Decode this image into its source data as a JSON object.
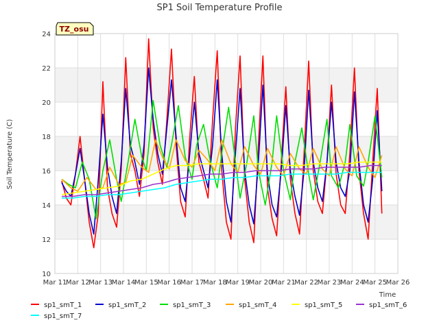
{
  "chart_data": {
    "type": "line",
    "title": "SP1 Soil Temperature Profile",
    "xlabel": "Time",
    "ylabel": "Soil Temperature (C)",
    "ylim": [
      10,
      24
    ],
    "xlim": [
      11,
      26
    ],
    "yticks": [
      10,
      12,
      14,
      16,
      18,
      20,
      22,
      24
    ],
    "xticks": [
      {
        "v": 11,
        "label": "Mar 11"
      },
      {
        "v": 12,
        "label": "Mar 12"
      },
      {
        "v": 13,
        "label": "Mar 13"
      },
      {
        "v": 14,
        "label": "Mar 14"
      },
      {
        "v": 15,
        "label": "Mar 15"
      },
      {
        "v": 16,
        "label": "Mar 16"
      },
      {
        "v": 17,
        "label": "Mar 17"
      },
      {
        "v": 18,
        "label": "Mar 18"
      },
      {
        "v": 19,
        "label": "Mar 19"
      },
      {
        "v": 20,
        "label": "Mar 20"
      },
      {
        "v": 21,
        "label": "Mar 21"
      },
      {
        "v": 22,
        "label": "Mar 22"
      },
      {
        "v": 23,
        "label": "Mar 23"
      },
      {
        "v": 24,
        "label": "Mar 24"
      },
      {
        "v": 25,
        "label": "Mar 25"
      },
      {
        "v": 26,
        "label": "Mar 26"
      }
    ],
    "badge": "TZ_osu",
    "grid": true,
    "legend_position": "bottom",
    "series": [
      {
        "name": "sp1_smT_1",
        "color": "#ff0000",
        "x": [
          11.3,
          11.5,
          11.7,
          11.9,
          12.1,
          12.3,
          12.5,
          12.7,
          12.9,
          13.1,
          13.3,
          13.5,
          13.7,
          13.9,
          14.1,
          14.3,
          14.5,
          14.7,
          14.9,
          15.1,
          15.3,
          15.5,
          15.7,
          15.9,
          16.1,
          16.3,
          16.5,
          16.7,
          16.9,
          17.1,
          17.3,
          17.5,
          17.7,
          17.9,
          18.1,
          18.3,
          18.5,
          18.7,
          18.9,
          19.1,
          19.3,
          19.5,
          19.7,
          19.9,
          20.1,
          20.3,
          20.5,
          20.7,
          20.9,
          21.1,
          21.3,
          21.5,
          21.7,
          21.9,
          22.1,
          22.3,
          22.5,
          22.7,
          22.9,
          23.1,
          23.3,
          23.5,
          23.7,
          23.9,
          24.1,
          24.3,
          24.5,
          24.7,
          24.9,
          25.1,
          25.3
        ],
        "y": [
          15.4,
          14.4,
          14.0,
          15.8,
          18.0,
          15.5,
          13.0,
          11.5,
          13.5,
          21.2,
          15.0,
          13.5,
          12.7,
          16.0,
          22.6,
          17.0,
          16.0,
          14.5,
          17.0,
          23.7,
          18.5,
          16.5,
          15.2,
          19.0,
          23.1,
          17.5,
          14.2,
          13.3,
          18.0,
          21.5,
          16.5,
          15.5,
          14.4,
          19.0,
          23.0,
          16.0,
          13.0,
          12.0,
          18.5,
          22.7,
          15.5,
          13.0,
          11.8,
          17.5,
          22.7,
          15.0,
          13.2,
          12.2,
          16.5,
          20.9,
          15.5,
          13.5,
          12.3,
          17.0,
          22.4,
          16.0,
          14.2,
          13.5,
          16.5,
          21.0,
          15.8,
          14.0,
          13.5,
          17.0,
          22.0,
          16.0,
          13.5,
          12.0,
          16.5,
          20.8,
          13.5
        ]
      },
      {
        "name": "sp1_smT_2",
        "color": "#0000cc",
        "x": [
          11.3,
          11.5,
          11.7,
          11.9,
          12.1,
          12.3,
          12.5,
          12.7,
          12.9,
          13.1,
          13.3,
          13.5,
          13.7,
          13.9,
          14.1,
          14.3,
          14.5,
          14.7,
          14.9,
          15.1,
          15.3,
          15.5,
          15.7,
          15.9,
          16.1,
          16.3,
          16.5,
          16.7,
          16.9,
          17.1,
          17.3,
          17.5,
          17.7,
          17.9,
          18.1,
          18.3,
          18.5,
          18.7,
          18.9,
          19.1,
          19.3,
          19.5,
          19.7,
          19.9,
          20.1,
          20.3,
          20.5,
          20.7,
          20.9,
          21.1,
          21.3,
          21.5,
          21.7,
          21.9,
          22.1,
          22.3,
          22.5,
          22.7,
          22.9,
          23.1,
          23.3,
          23.5,
          23.7,
          23.9,
          24.1,
          24.3,
          24.5,
          24.7,
          24.9,
          25.1,
          25.3
        ],
        "y": [
          15.3,
          14.8,
          14.5,
          15.8,
          17.3,
          15.5,
          13.5,
          12.3,
          15.5,
          19.3,
          16.2,
          14.5,
          13.5,
          16.5,
          20.8,
          17.5,
          16.5,
          15.2,
          17.5,
          22.0,
          19.0,
          17.0,
          15.8,
          18.5,
          21.3,
          18.0,
          15.0,
          14.2,
          17.0,
          20.0,
          17.0,
          16.0,
          15.0,
          17.5,
          21.3,
          17.0,
          14.2,
          13.0,
          17.0,
          20.8,
          16.0,
          14.0,
          12.9,
          16.5,
          21.0,
          15.8,
          14.0,
          13.3,
          16.0,
          19.8,
          16.0,
          14.5,
          13.4,
          16.0,
          20.7,
          16.5,
          15.0,
          14.2,
          16.5,
          20.0,
          16.5,
          15.0,
          14.5,
          16.0,
          20.6,
          16.5,
          14.0,
          13.0,
          15.5,
          19.5,
          14.8
        ]
      },
      {
        "name": "sp1_smT_3",
        "color": "#00dd00",
        "x": [
          11.3,
          11.6,
          11.9,
          12.2,
          12.5,
          12.8,
          13.1,
          13.4,
          13.7,
          13.9,
          14.2,
          14.5,
          14.8,
          15.0,
          15.3,
          15.6,
          15.9,
          16.1,
          16.4,
          16.7,
          17.0,
          17.2,
          17.5,
          17.8,
          18.1,
          18.3,
          18.6,
          18.9,
          19.1,
          19.4,
          19.7,
          19.9,
          20.2,
          20.5,
          20.7,
          21.0,
          21.3,
          21.5,
          21.8,
          22.1,
          22.3,
          22.6,
          22.9,
          23.1,
          23.4,
          23.7,
          23.9,
          24.2,
          24.5,
          24.7,
          25.0,
          25.3
        ],
        "y": [
          15.5,
          15.2,
          15.0,
          16.5,
          15.5,
          13.2,
          16.0,
          17.8,
          15.5,
          14.2,
          16.5,
          19.0,
          16.8,
          16.0,
          20.1,
          17.5,
          16.2,
          17.5,
          19.8,
          16.8,
          15.5,
          17.5,
          18.7,
          16.5,
          15.0,
          17.0,
          19.7,
          16.5,
          14.4,
          16.5,
          19.2,
          16.0,
          14.0,
          16.5,
          19.2,
          16.0,
          14.3,
          16.5,
          18.5,
          15.8,
          14.3,
          16.5,
          19.0,
          15.7,
          15.0,
          16.5,
          18.7,
          15.7,
          15.1,
          16.5,
          19.2,
          15.6
        ]
      },
      {
        "name": "sp1_smT_4",
        "color": "#ffa500",
        "x": [
          11.3,
          11.7,
          12.0,
          12.4,
          12.8,
          13.1,
          13.4,
          13.8,
          14.1,
          14.4,
          14.8,
          15.1,
          15.4,
          15.7,
          16.0,
          16.3,
          16.7,
          17.0,
          17.3,
          17.7,
          18.0,
          18.3,
          18.7,
          19.0,
          19.3,
          19.7,
          20.0,
          20.3,
          20.7,
          21.0,
          21.3,
          21.7,
          22.0,
          22.3,
          22.7,
          23.0,
          23.3,
          23.7,
          24.0,
          24.3,
          24.7,
          25.0,
          25.3
        ],
        "y": [
          15.5,
          15.0,
          14.8,
          15.6,
          14.9,
          15.0,
          16.2,
          15.2,
          15.3,
          16.9,
          16.2,
          15.9,
          17.8,
          16.8,
          16.1,
          17.8,
          16.6,
          16.2,
          17.2,
          16.6,
          16.0,
          17.8,
          16.4,
          15.9,
          17.4,
          16.3,
          15.8,
          17.3,
          16.2,
          15.7,
          17.0,
          16.1,
          15.8,
          17.3,
          16.1,
          15.7,
          17.4,
          16.1,
          15.7,
          17.4,
          16.2,
          15.6,
          16.9
        ]
      },
      {
        "name": "sp1_smT_5",
        "color": "#ffff00",
        "x": [
          11.3,
          11.8,
          12.3,
          12.8,
          13.3,
          13.8,
          14.3,
          14.8,
          15.3,
          15.8,
          16.3,
          16.8,
          17.3,
          17.8,
          18.3,
          18.8,
          19.3,
          19.8,
          20.3,
          20.8,
          21.3,
          21.8,
          22.3,
          22.8,
          23.3,
          23.8,
          24.3,
          24.8,
          25.3
        ],
        "y": [
          14.6,
          14.7,
          14.8,
          14.9,
          15.0,
          15.1,
          15.4,
          15.5,
          15.8,
          16.1,
          16.3,
          16.3,
          16.4,
          16.4,
          16.4,
          16.4,
          16.4,
          16.4,
          16.4,
          16.4,
          16.3,
          16.3,
          16.4,
          16.4,
          16.4,
          16.4,
          16.5,
          16.5,
          16.5
        ]
      },
      {
        "name": "sp1_smT_6",
        "color": "#9932cc",
        "x": [
          11.3,
          11.8,
          12.3,
          12.8,
          13.3,
          13.8,
          14.3,
          14.8,
          15.3,
          15.8,
          16.3,
          16.8,
          17.3,
          17.8,
          18.3,
          18.8,
          19.3,
          19.8,
          20.3,
          20.8,
          21.3,
          21.8,
          22.3,
          22.8,
          23.3,
          23.8,
          24.3,
          24.8,
          25.3
        ],
        "y": [
          14.5,
          14.5,
          14.6,
          14.6,
          14.7,
          14.8,
          14.9,
          15.0,
          15.2,
          15.3,
          15.5,
          15.6,
          15.7,
          15.8,
          15.8,
          15.9,
          15.9,
          16.0,
          16.0,
          16.0,
          16.1,
          16.1,
          16.1,
          16.2,
          16.2,
          16.2,
          16.2,
          16.3,
          16.3
        ]
      },
      {
        "name": "sp1_smT_7",
        "color": "#00ffff",
        "x": [
          11.3,
          11.8,
          12.3,
          12.8,
          13.3,
          13.8,
          14.3,
          14.8,
          15.3,
          15.8,
          16.3,
          16.8,
          17.3,
          17.8,
          18.3,
          18.8,
          19.3,
          19.8,
          20.3,
          20.8,
          21.3,
          21.8,
          22.3,
          22.8,
          23.3,
          23.8,
          24.3,
          24.8,
          25.3
        ],
        "y": [
          14.4,
          14.4,
          14.5,
          14.5,
          14.6,
          14.6,
          14.7,
          14.8,
          14.9,
          15.0,
          15.2,
          15.3,
          15.4,
          15.5,
          15.5,
          15.6,
          15.6,
          15.7,
          15.7,
          15.7,
          15.8,
          15.8,
          15.8,
          15.8,
          15.8,
          15.9,
          15.9,
          15.9,
          15.9
        ]
      }
    ]
  }
}
